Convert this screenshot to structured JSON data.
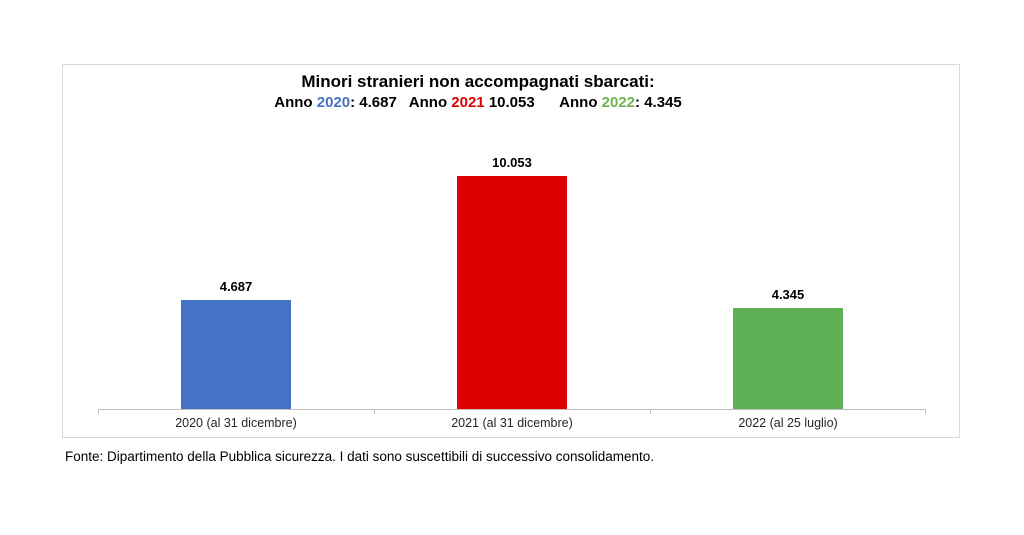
{
  "header": {
    "title": "Minori stranieri non accompagnati sbarcati:",
    "subtitle_parts": [
      {
        "text": "Anno ",
        "color": "#000000"
      },
      {
        "text": "2020",
        "color": "#4472c4"
      },
      {
        "text": ": 4.687   ",
        "color": "#000000"
      },
      {
        "text": "Anno ",
        "color": "#000000"
      },
      {
        "text": "2021",
        "color": "#de0000"
      },
      {
        "text": " 10.053      ",
        "color": "#000000"
      },
      {
        "text": "Anno ",
        "color": "#000000"
      },
      {
        "text": "2022",
        "color": "#6fb34e"
      },
      {
        "text": ": 4.345",
        "color": "#000000"
      }
    ]
  },
  "chart_data": {
    "type": "bar",
    "title": "Minori stranieri non accompagnati sbarcati:",
    "categories": [
      "2020 (al 31 dicembre)",
      "2021 (al 31 dicembre)",
      "2022 (al 25 luglio)"
    ],
    "values": [
      4687,
      10053,
      4345
    ],
    "value_labels": [
      "4.687",
      "10.053",
      "4.345"
    ],
    "bar_colors": [
      "#4472c4",
      "#de0000",
      "#5faf54"
    ],
    "xlabel": "",
    "ylabel": "",
    "ylim": [
      0,
      10053
    ],
    "grid": false,
    "legend": "none",
    "axis_color": "#bfbfbf"
  },
  "footer": {
    "source": "Fonte: Dipartimento della Pubblica sicurezza. I dati sono suscettibili di successivo consolidamento."
  }
}
